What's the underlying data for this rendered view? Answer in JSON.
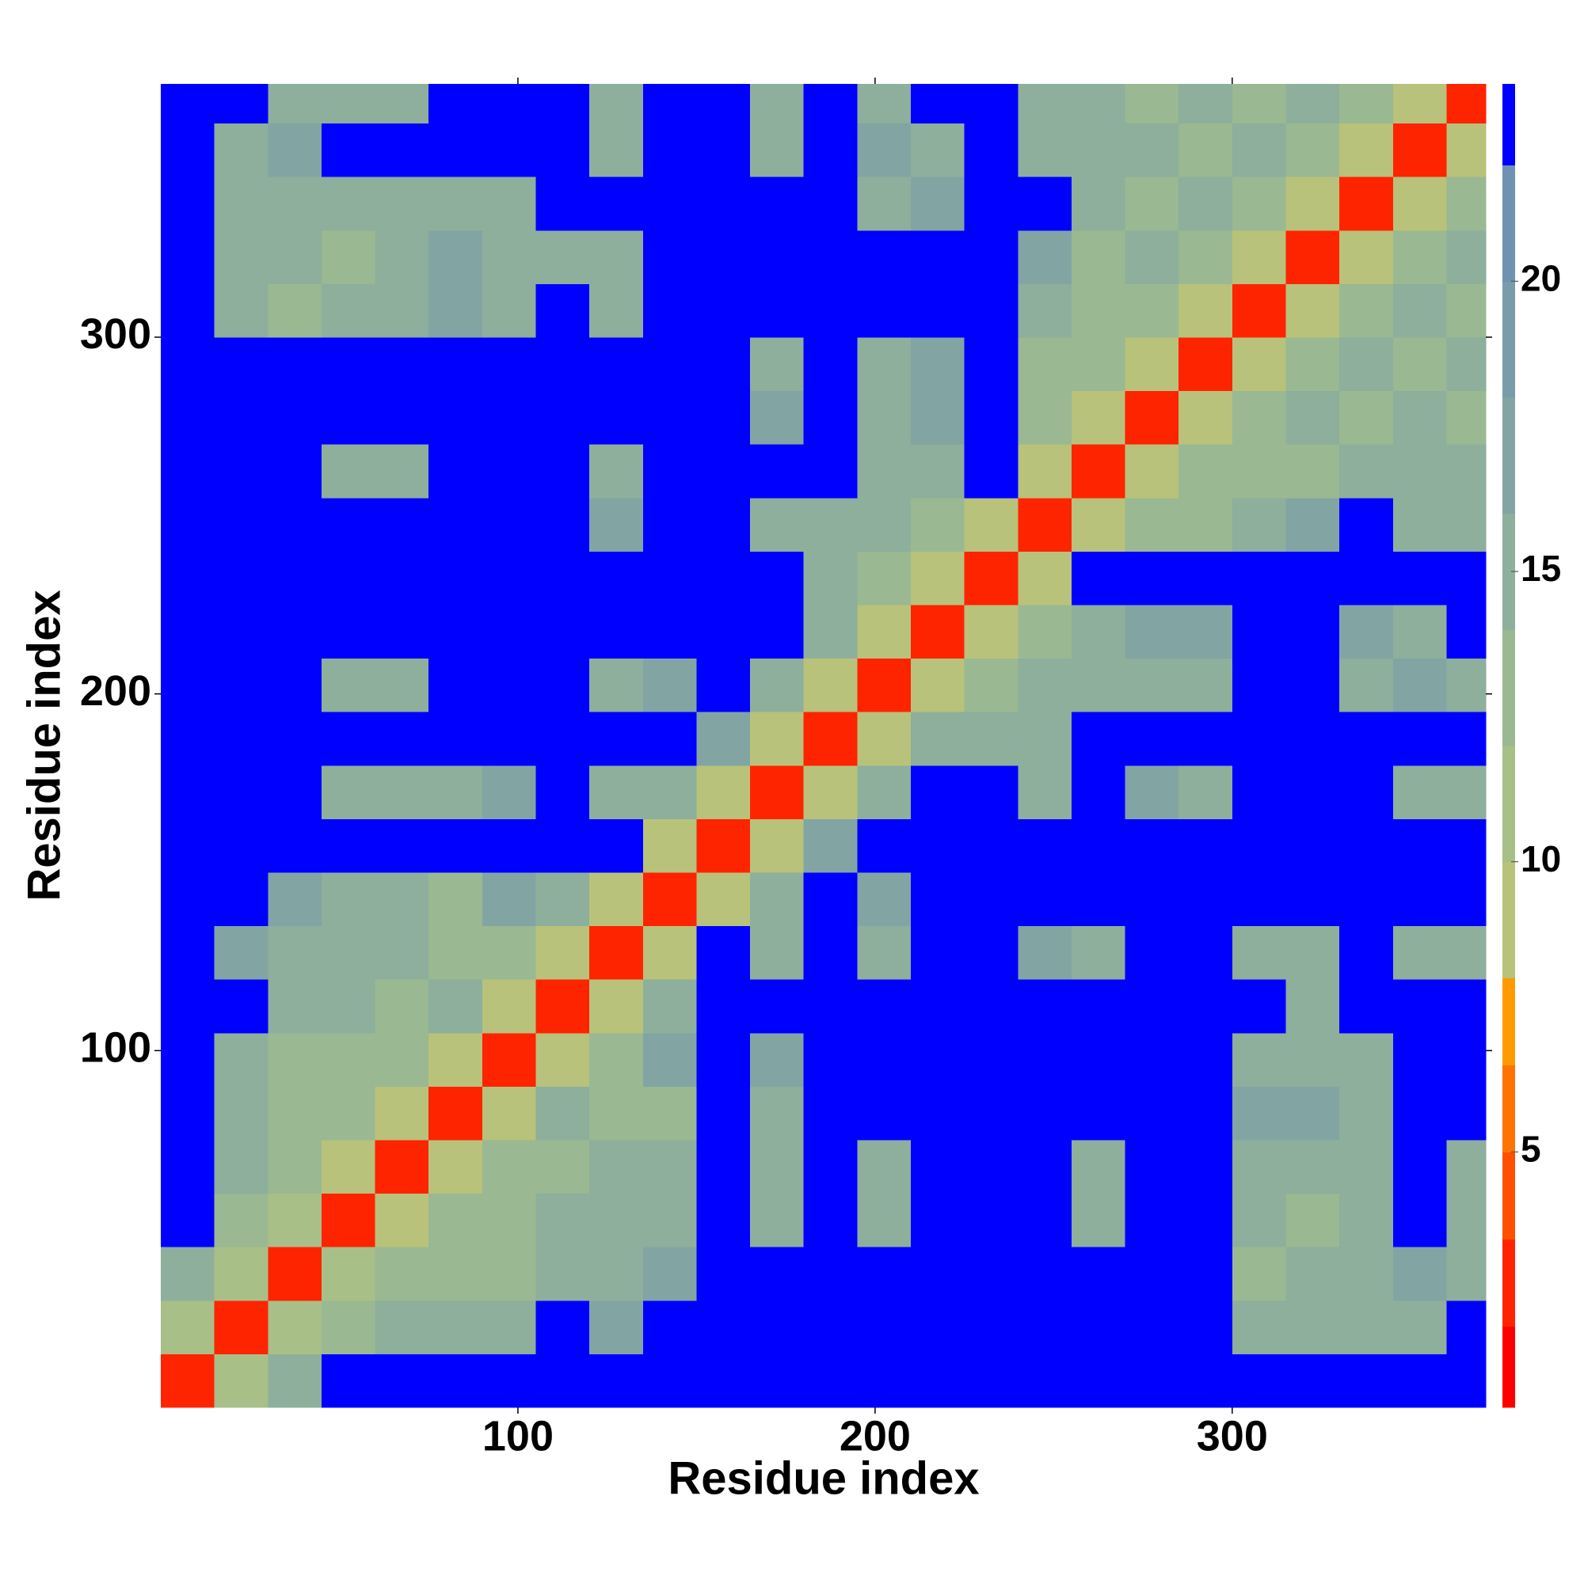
{
  "chart_data": {
    "type": "heatmap",
    "xlabel": "Residue index",
    "ylabel": "Residue index",
    "xlim": [
      0,
      371
    ],
    "ylim": [
      0,
      371
    ],
    "xticks": [
      100,
      200,
      300
    ],
    "yticks": [
      100,
      200,
      300
    ],
    "x_bins": [
      0,
      15,
      30,
      45,
      60,
      75,
      90,
      105,
      120,
      135,
      150,
      165,
      180,
      195,
      210,
      225,
      240,
      255,
      270,
      285,
      300,
      315,
      330,
      345,
      360,
      371
    ],
    "y_bins": [
      0,
      15,
      30,
      45,
      60,
      75,
      90,
      105,
      120,
      135,
      150,
      165,
      180,
      195,
      210,
      225,
      240,
      255,
      270,
      285,
      300,
      315,
      330,
      345,
      360,
      371
    ],
    "values": [
      [
        3,
        10,
        14,
        23,
        23,
        23,
        23,
        23,
        23,
        23,
        23,
        23,
        23,
        23,
        23,
        23,
        23,
        23,
        23,
        23,
        23,
        23,
        23,
        23,
        23
      ],
      [
        10,
        3,
        10,
        13,
        14,
        15,
        14,
        23,
        16,
        23,
        23,
        23,
        23,
        23,
        23,
        23,
        23,
        23,
        23,
        23,
        15,
        14,
        14,
        15,
        23
      ],
      [
        14,
        10,
        3,
        10,
        13,
        13,
        13,
        14,
        14,
        16,
        23,
        23,
        23,
        23,
        23,
        23,
        23,
        23,
        23,
        23,
        13,
        14,
        14,
        16,
        15
      ],
      [
        23,
        13,
        10,
        3,
        9,
        13,
        13,
        15,
        14,
        14,
        23,
        15,
        23,
        15,
        23,
        23,
        23,
        14,
        23,
        23,
        14,
        13,
        14,
        23,
        14
      ],
      [
        23,
        14,
        13,
        9,
        3,
        9,
        13,
        13,
        15,
        14,
        23,
        14,
        23,
        15,
        23,
        23,
        23,
        15,
        23,
        23,
        15,
        15,
        15,
        23,
        14
      ],
      [
        23,
        15,
        13,
        13,
        9,
        3,
        9,
        14,
        13,
        13,
        23,
        15,
        23,
        23,
        23,
        23,
        23,
        23,
        23,
        23,
        16,
        16,
        15,
        23,
        23
      ],
      [
        23,
        14,
        13,
        13,
        13,
        9,
        3,
        9,
        13,
        16,
        23,
        16,
        23,
        23,
        23,
        23,
        23,
        23,
        23,
        23,
        15,
        15,
        15,
        23,
        23
      ],
      [
        23,
        23,
        14,
        15,
        13,
        14,
        9,
        3,
        9,
        14,
        23,
        23,
        23,
        23,
        23,
        23,
        23,
        23,
        23,
        23,
        23,
        15,
        23,
        23,
        23
      ],
      [
        23,
        16,
        14,
        14,
        15,
        13,
        13,
        9,
        3,
        9,
        23,
        14,
        23,
        14,
        23,
        23,
        16,
        14,
        23,
        23,
        15,
        14,
        23,
        15,
        14
      ],
      [
        23,
        23,
        16,
        14,
        14,
        13,
        16,
        14,
        9,
        3,
        9,
        15,
        23,
        16,
        23,
        23,
        23,
        23,
        23,
        23,
        23,
        23,
        23,
        23,
        23
      ],
      [
        23,
        23,
        23,
        23,
        23,
        23,
        23,
        23,
        23,
        9,
        3,
        9,
        16,
        23,
        23,
        23,
        23,
        23,
        23,
        23,
        23,
        23,
        23,
        23,
        23
      ],
      [
        23,
        23,
        23,
        15,
        14,
        15,
        16,
        23,
        14,
        15,
        9,
        3,
        9,
        14,
        23,
        23,
        15,
        23,
        16,
        15,
        23,
        23,
        23,
        15,
        15
      ],
      [
        23,
        23,
        23,
        23,
        23,
        23,
        23,
        23,
        23,
        23,
        16,
        9,
        3,
        9,
        14,
        15,
        14,
        23,
        23,
        23,
        23,
        23,
        23,
        23,
        23
      ],
      [
        23,
        23,
        23,
        15,
        15,
        23,
        23,
        23,
        14,
        16,
        23,
        14,
        9,
        3,
        9,
        13,
        14,
        15,
        15,
        15,
        23,
        23,
        15,
        16,
        15
      ],
      [
        23,
        23,
        23,
        23,
        23,
        23,
        23,
        23,
        23,
        23,
        23,
        23,
        14,
        9,
        3,
        9,
        13,
        15,
        16,
        16,
        23,
        23,
        16,
        15,
        23
      ],
      [
        23,
        23,
        23,
        23,
        23,
        23,
        23,
        23,
        23,
        23,
        23,
        23,
        15,
        13,
        9,
        3,
        9,
        23,
        23,
        23,
        23,
        23,
        23,
        23,
        23
      ],
      [
        23,
        23,
        23,
        23,
        23,
        23,
        23,
        23,
        16,
        23,
        23,
        15,
        14,
        14,
        13,
        9,
        3,
        9,
        13,
        13,
        14,
        16,
        23,
        15,
        15
      ],
      [
        23,
        23,
        23,
        14,
        15,
        23,
        23,
        23,
        14,
        23,
        23,
        23,
        23,
        15,
        15,
        23,
        9,
        3,
        9,
        13,
        13,
        13,
        15,
        14,
        14
      ],
      [
        23,
        23,
        23,
        23,
        23,
        23,
        23,
        23,
        23,
        23,
        23,
        16,
        23,
        15,
        16,
        23,
        13,
        9,
        3,
        9,
        13,
        14,
        13,
        14,
        13
      ],
      [
        23,
        23,
        23,
        23,
        23,
        23,
        23,
        23,
        23,
        23,
        23,
        15,
        23,
        15,
        16,
        23,
        13,
        13,
        9,
        3,
        9,
        13,
        14,
        13,
        14
      ],
      [
        23,
        15,
        13,
        14,
        15,
        16,
        15,
        23,
        15,
        23,
        23,
        23,
        23,
        23,
        23,
        23,
        14,
        13,
        13,
        9,
        3,
        9,
        13,
        14,
        13
      ],
      [
        23,
        14,
        14,
        13,
        15,
        16,
        15,
        15,
        14,
        23,
        23,
        23,
        23,
        23,
        23,
        23,
        16,
        13,
        14,
        13,
        9,
        3,
        9,
        13,
        14
      ],
      [
        23,
        14,
        14,
        14,
        15,
        15,
        15,
        23,
        23,
        23,
        23,
        23,
        23,
        15,
        16,
        23,
        23,
        15,
        13,
        14,
        13,
        9,
        3,
        9,
        13
      ],
      [
        23,
        15,
        16,
        23,
        23,
        23,
        23,
        23,
        15,
        23,
        23,
        15,
        23,
        16,
        15,
        23,
        15,
        14,
        14,
        13,
        14,
        13,
        9,
        3,
        9
      ],
      [
        23,
        23,
        15,
        14,
        14,
        23,
        23,
        23,
        14,
        23,
        23,
        15,
        23,
        15,
        23,
        23,
        15,
        14,
        13,
        14,
        13,
        14,
        13,
        9,
        3
      ]
    ],
    "colorbar": {
      "levels": [
        0.6,
        2,
        3.5,
        5,
        6.5,
        8,
        10,
        12,
        14,
        16,
        18,
        20,
        22,
        23.4
      ],
      "colors": [
        "#ff0000",
        "#ff2400",
        "#ff5000",
        "#ff7400",
        "#ff9a00",
        "#b8c27a",
        "#a9bf88",
        "#9ab892",
        "#8daf9b",
        "#82a5a3",
        "#7a9caa",
        "#6f92b0",
        "#0000ff"
      ],
      "ticks": [
        5,
        10,
        15,
        20
      ]
    }
  }
}
